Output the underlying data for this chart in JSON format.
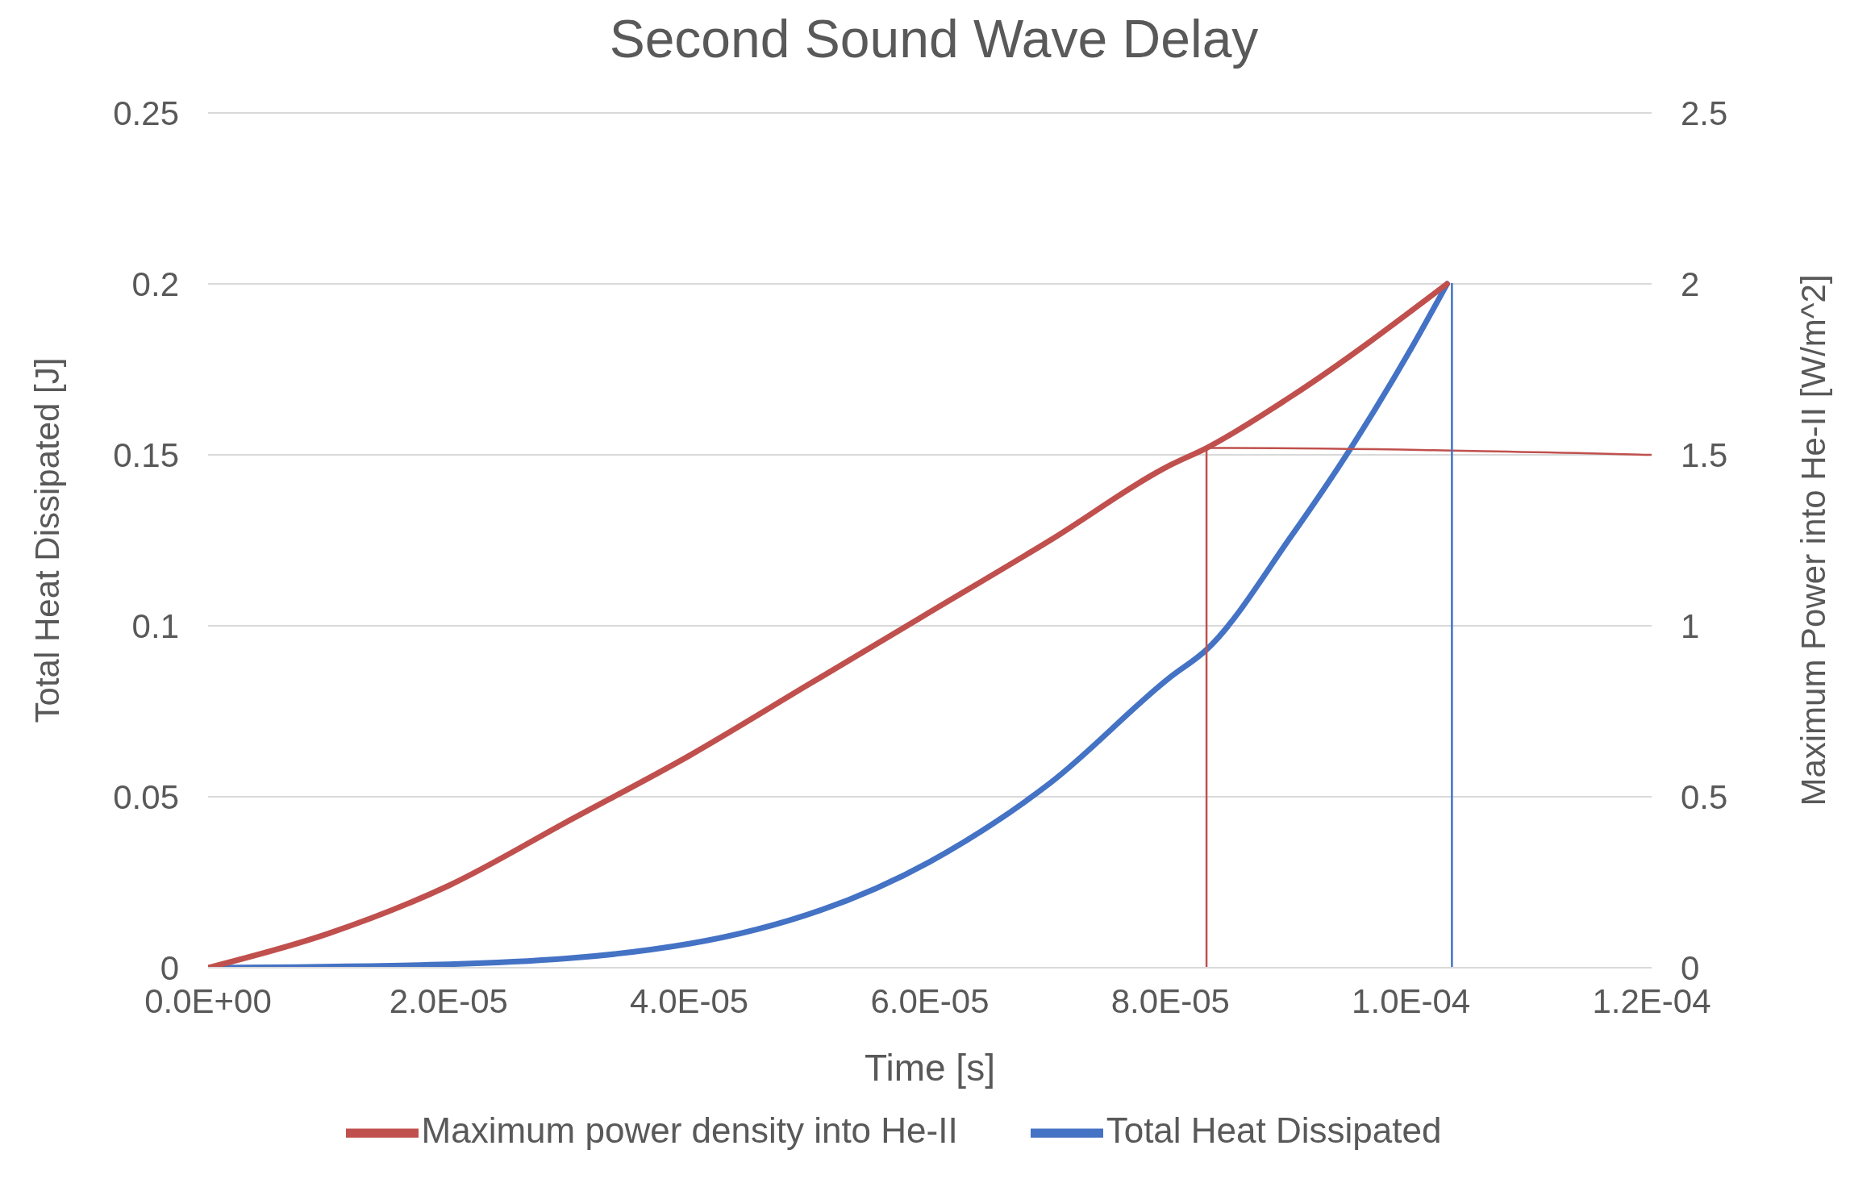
{
  "chart_data": {
    "type": "line",
    "title": "Second Sound Wave Delay",
    "xlabel": "Time [s]",
    "ylabel": "Total Heat Dissipated [J]",
    "y2label": "Maximum Power  into He-II [W/m^2]",
    "xlim": [
      0,
      0.00012
    ],
    "xticks": [
      {
        "value": 0,
        "label": "0.0E+00"
      },
      {
        "value": 2e-05,
        "label": "2.0E-05"
      },
      {
        "value": 4e-05,
        "label": "4.0E-05"
      },
      {
        "value": 6e-05,
        "label": "6.0E-05"
      },
      {
        "value": 8e-05,
        "label": "8.0E-05"
      },
      {
        "value": 0.0001,
        "label": "1.0E-04"
      },
      {
        "value": 0.00012,
        "label": "1.2E-04"
      }
    ],
    "ylim": [
      0,
      0.25
    ],
    "yticks": [
      0,
      0.05,
      0.1,
      0.15,
      0.2,
      0.25
    ],
    "y2lim": [
      0,
      2.5
    ],
    "y2ticks": [
      0,
      0.5,
      1,
      1.5,
      2,
      2.5
    ],
    "grid": "y",
    "legend": "bottom",
    "marker": "none",
    "line_style": "solid",
    "series": [
      {
        "name": "Total Heat Dissipated",
        "color": "#4472c4",
        "x": [
          0,
          2e-05,
          4e-05,
          6e-05,
          7e-05,
          8e-05,
          8.3e-05,
          9e-05,
          9.5e-05,
          0.0001,
          0.000103
        ],
        "values": [
          0,
          0.001,
          0.007,
          0.031,
          0.054,
          0.085,
          0.093,
          0.126,
          0.152,
          0.181,
          0.2
        ]
      },
      {
        "name": "Maximum power density into He-II",
        "color": "#c0504d",
        "axis": "y2",
        "x": [
          0,
          1e-05,
          2e-05,
          3e-05,
          4e-05,
          5e-05,
          6e-05,
          7e-05,
          8e-05,
          8.3e-05,
          9e-05,
          0.000103
        ],
        "values": [
          0,
          0.1,
          0.24,
          0.43,
          0.62,
          0.83,
          1.04,
          1.25,
          1.47,
          1.52,
          1.67,
          2
        ]
      },
      {
        "color": "#c0504d",
        "axis": "y2",
        "x": [
          8.3e-05,
          8.3e-05,
          0.00012
        ],
        "values": [
          0,
          1.52,
          1.5
        ]
      },
      {
        "color": "#4472c4",
        "x": [
          0.0001034,
          0.0001034
        ],
        "values": [
          0,
          0.2
        ]
      }
    ]
  }
}
